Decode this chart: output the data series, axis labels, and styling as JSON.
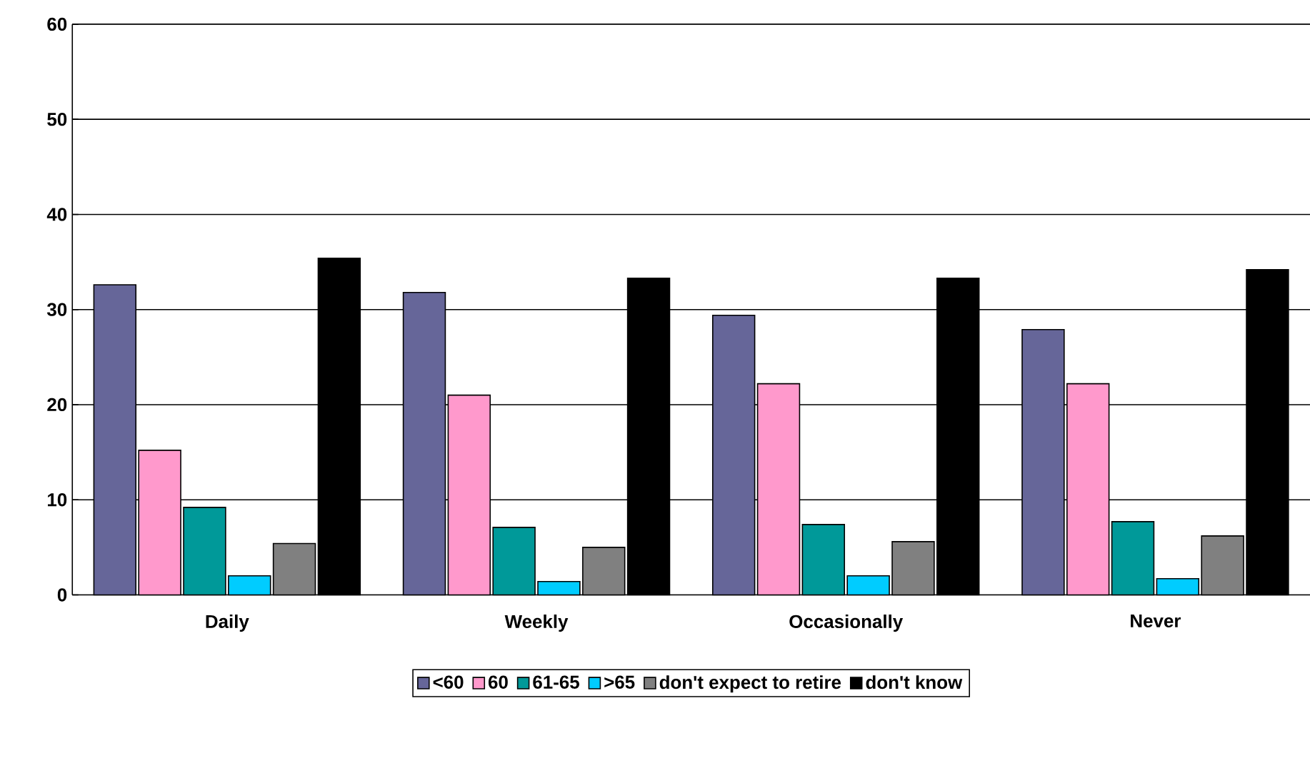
{
  "chart_data": {
    "type": "bar",
    "categories": [
      "Daily",
      "Weekly",
      "Occasionally",
      "Never"
    ],
    "series": [
      {
        "name": "<60",
        "color": "#666699",
        "values": [
          32.6,
          31.8,
          29.4,
          27.9
        ]
      },
      {
        "name": "60",
        "color": "#ff99cc",
        "values": [
          15.2,
          21.0,
          22.2,
          22.2
        ]
      },
      {
        "name": "61-65",
        "color": "#009999",
        "values": [
          9.2,
          7.1,
          7.4,
          7.7
        ]
      },
      {
        "name": ">65",
        "color": "#00ccff",
        "values": [
          2.0,
          1.4,
          2.0,
          1.7
        ]
      },
      {
        "name": "don't expect to retire",
        "color": "#808080",
        "values": [
          5.4,
          5.0,
          5.6,
          6.2
        ]
      },
      {
        "name": "don't know",
        "color": "#000000",
        "values": [
          35.4,
          33.3,
          33.3,
          34.2
        ]
      }
    ],
    "ylim": [
      0,
      60
    ],
    "yticks": [
      0,
      10,
      20,
      30,
      40,
      50,
      60
    ],
    "grid": "y",
    "legend": "bottom"
  }
}
